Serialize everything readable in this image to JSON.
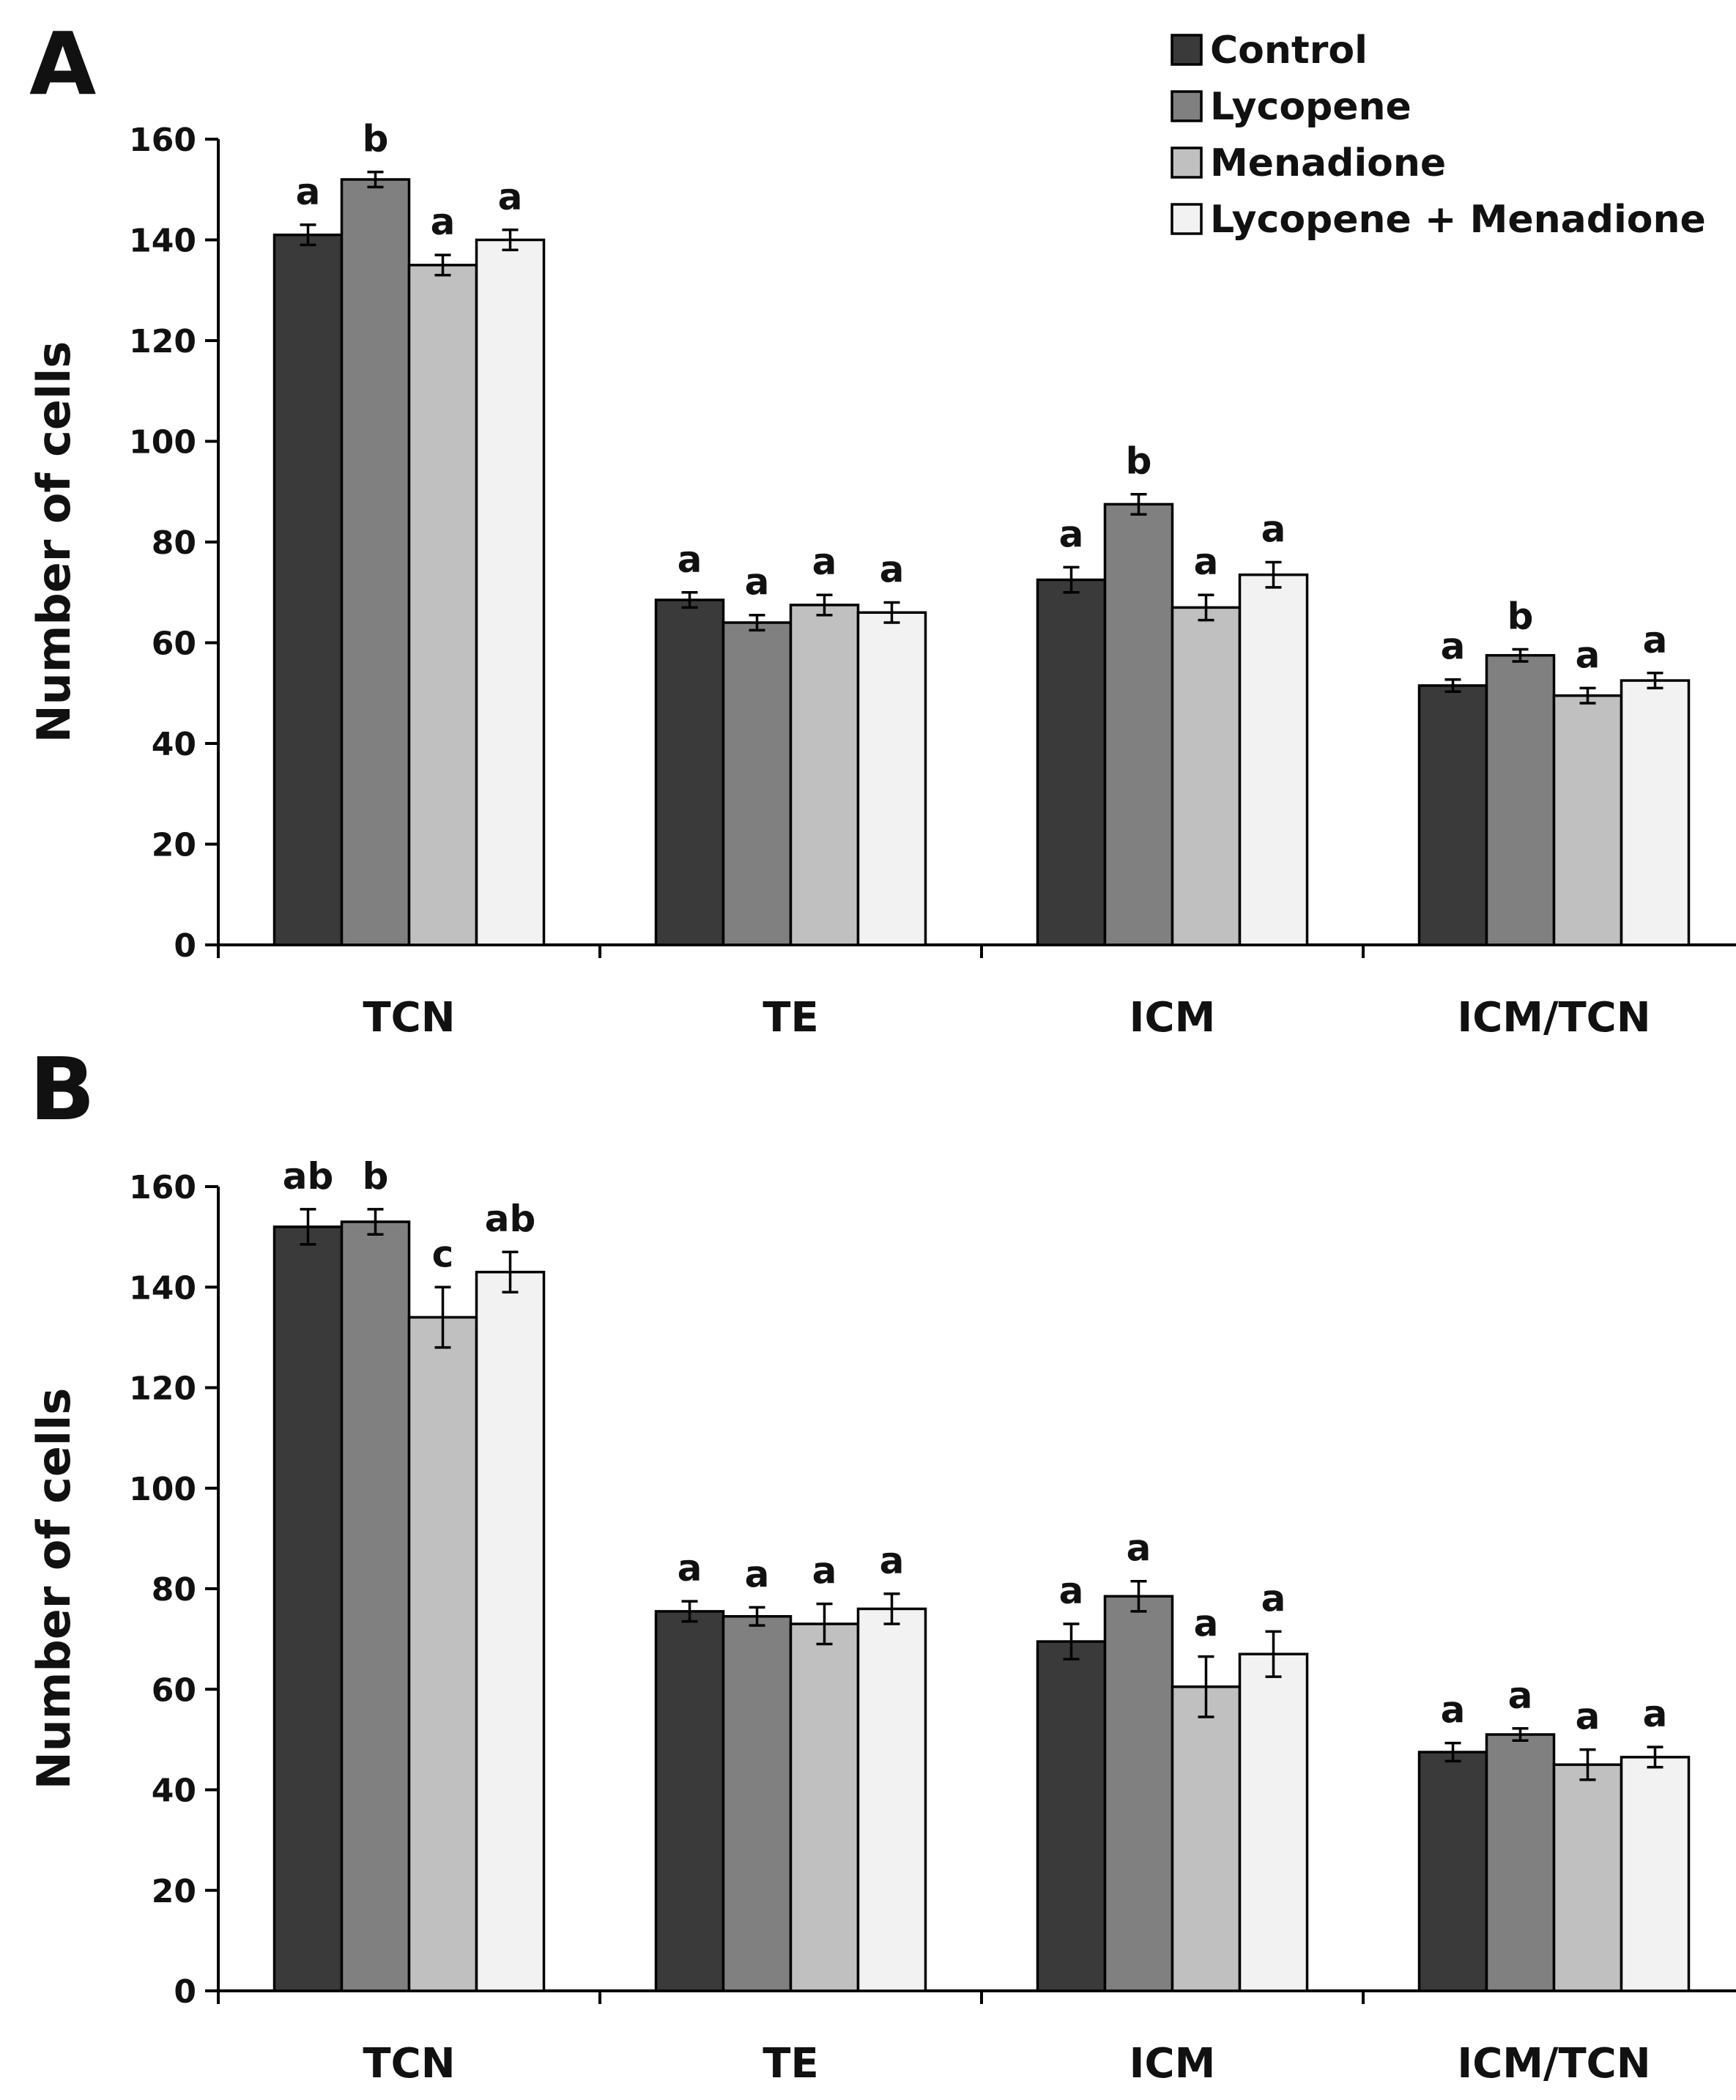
{
  "legend": [
    {
      "label": "Control",
      "color": "#3a3a3a"
    },
    {
      "label": "Lycopene",
      "color": "#808080"
    },
    {
      "label": "Menadione",
      "color": "#c0c0c0"
    },
    {
      "label": "Lycopene + Menadione",
      "color": "#f2f2f2"
    }
  ],
  "chart_data": [
    {
      "panel": "A",
      "type": "bar",
      "ylabel": "Number of cells",
      "ylim": [
        0,
        160
      ],
      "yticks": [
        0,
        20,
        40,
        60,
        80,
        100,
        120,
        140,
        160
      ],
      "categories": [
        "TCN",
        "TE",
        "ICM",
        "ICM/TCN"
      ],
      "series": [
        {
          "name": "Control",
          "values": [
            141,
            68.5,
            72.5,
            51.5
          ],
          "errors": [
            2,
            1.5,
            2.5,
            1.2
          ],
          "letters": [
            "a",
            "a",
            "a",
            "a"
          ]
        },
        {
          "name": "Lycopene",
          "values": [
            152,
            64,
            87.5,
            57.5
          ],
          "errors": [
            1.5,
            1.5,
            2,
            1.2
          ],
          "letters": [
            "b",
            "a",
            "b",
            "b"
          ]
        },
        {
          "name": "Menadione",
          "values": [
            135,
            67.5,
            67,
            49.5
          ],
          "errors": [
            2,
            2,
            2.5,
            1.5
          ],
          "letters": [
            "a",
            "a",
            "a",
            "a"
          ]
        },
        {
          "name": "Lycopene + Menadione",
          "values": [
            140,
            66,
            73.5,
            52.5
          ],
          "errors": [
            2,
            2,
            2.5,
            1.5
          ],
          "letters": [
            "a",
            "a",
            "a",
            "a"
          ]
        }
      ]
    },
    {
      "panel": "B",
      "type": "bar",
      "ylabel": "Number of cells",
      "ylim": [
        0,
        160
      ],
      "yticks": [
        0,
        20,
        40,
        60,
        80,
        100,
        120,
        140,
        160
      ],
      "categories": [
        "TCN",
        "TE",
        "ICM",
        "ICM/TCN"
      ],
      "series": [
        {
          "name": "Control",
          "values": [
            152,
            75.5,
            69.5,
            47.5
          ],
          "errors": [
            3.5,
            2,
            3.5,
            1.8
          ],
          "letters": [
            "ab",
            "a",
            "a",
            "a"
          ]
        },
        {
          "name": "Lycopene",
          "values": [
            153,
            74.5,
            78.5,
            51
          ],
          "errors": [
            2.5,
            1.8,
            3,
            1.2
          ],
          "letters": [
            "b",
            "a",
            "a",
            "a"
          ]
        },
        {
          "name": "Menadione",
          "values": [
            134,
            73,
            60.5,
            45
          ],
          "errors": [
            6,
            4,
            6,
            3
          ],
          "letters": [
            "c",
            "a",
            "a",
            "a"
          ]
        },
        {
          "name": "Lycopene + Menadione",
          "values": [
            143,
            76,
            67,
            46.5
          ],
          "errors": [
            4,
            3,
            4.5,
            2
          ],
          "letters": [
            "ab",
            "a",
            "a",
            "a"
          ]
        }
      ]
    }
  ]
}
